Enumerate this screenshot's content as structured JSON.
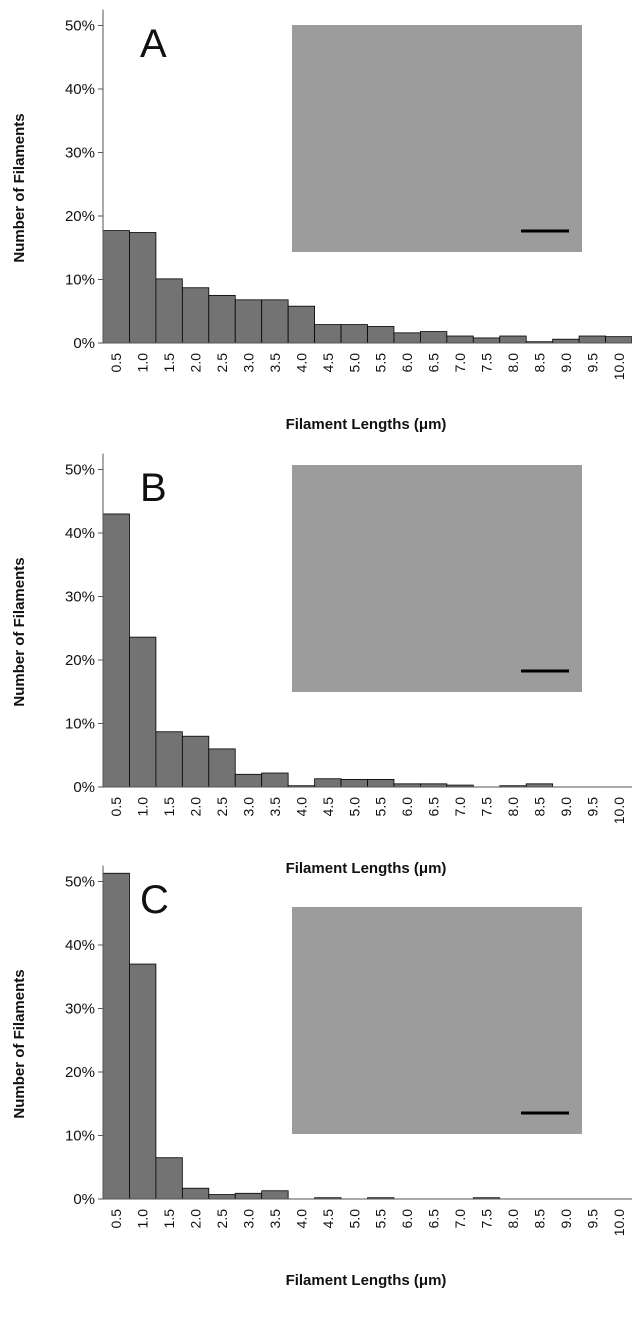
{
  "chart_data": [
    {
      "type": "bar",
      "label": "A",
      "x_label": "Filament Lengths (μm)",
      "y_label": "Number of Filaments",
      "categories": [
        "0.5",
        "1.0",
        "1.5",
        "2.0",
        "2.5",
        "3.0",
        "3.5",
        "4.0",
        "4.5",
        "5.0",
        "5.5",
        "6.0",
        "6.5",
        "7.0",
        "7.5",
        "8.0",
        "8.5",
        "9.0",
        "9.5",
        "10.0"
      ],
      "values": [
        17.7,
        17.4,
        10.1,
        8.7,
        7.5,
        6.8,
        6.8,
        5.8,
        2.9,
        2.9,
        2.6,
        1.6,
        1.8,
        1.1,
        0.8,
        1.1,
        0.2,
        0.6,
        1.1,
        1.0
      ],
      "color": "#737373",
      "ylim": [
        0,
        52.5
      ],
      "yticks": [
        {
          "value": 0,
          "label": "0%"
        },
        {
          "value": 10,
          "label": "10%"
        },
        {
          "value": 20,
          "label": "20%"
        },
        {
          "value": 30,
          "label": "30%"
        },
        {
          "value": 40,
          "label": "40%"
        },
        {
          "value": 50,
          "label": "50%"
        }
      ]
    },
    {
      "type": "bar",
      "label": "B",
      "x_label": "Filament Lengths (μm)",
      "y_label": "Number of Filaments",
      "categories": [
        "0.5",
        "1.0",
        "1.5",
        "2.0",
        "2.5",
        "3.0",
        "3.5",
        "4.0",
        "4.5",
        "5.0",
        "5.5",
        "6.0",
        "6.5",
        "7.0",
        "7.5",
        "8.0",
        "8.5",
        "9.0",
        "9.5",
        "10.0"
      ],
      "values": [
        43.0,
        23.6,
        8.7,
        8.0,
        6.0,
        2.0,
        2.2,
        0.2,
        1.3,
        1.2,
        1.2,
        0.5,
        0.5,
        0.3,
        0,
        0.2,
        0.5,
        0,
        0,
        0
      ],
      "color": "#737373",
      "ylim": [
        0,
        52.5
      ],
      "yticks": [
        {
          "value": 0,
          "label": "0%"
        },
        {
          "value": 10,
          "label": "10%"
        },
        {
          "value": 20,
          "label": "20%"
        },
        {
          "value": 30,
          "label": "30%"
        },
        {
          "value": 40,
          "label": "40%"
        },
        {
          "value": 50,
          "label": "50%"
        }
      ]
    },
    {
      "type": "bar",
      "label": "C",
      "x_label": "Filament Lengths (μm)",
      "y_label": "Number of Filaments",
      "categories": [
        "0.5",
        "1.0",
        "1.5",
        "2.0",
        "2.5",
        "3.0",
        "3.5",
        "4.0",
        "4.5",
        "5.0",
        "5.5",
        "6.0",
        "6.5",
        "7.0",
        "7.5",
        "8.0",
        "8.5",
        "9.0",
        "9.5",
        "10.0"
      ],
      "values": [
        51.3,
        37.0,
        6.5,
        1.7,
        0.7,
        0.9,
        1.3,
        0,
        0.2,
        0,
        0.2,
        0,
        0,
        0,
        0.2,
        0,
        0,
        0,
        0,
        0
      ],
      "color": "#737373",
      "ylim": [
        0,
        52.5
      ],
      "yticks": [
        {
          "value": 0,
          "label": "0%"
        },
        {
          "value": 10,
          "label": "10%"
        },
        {
          "value": 20,
          "label": "20%"
        },
        {
          "value": 30,
          "label": "30%"
        },
        {
          "value": 40,
          "label": "40%"
        },
        {
          "value": 50,
          "label": "50%"
        }
      ]
    }
  ]
}
